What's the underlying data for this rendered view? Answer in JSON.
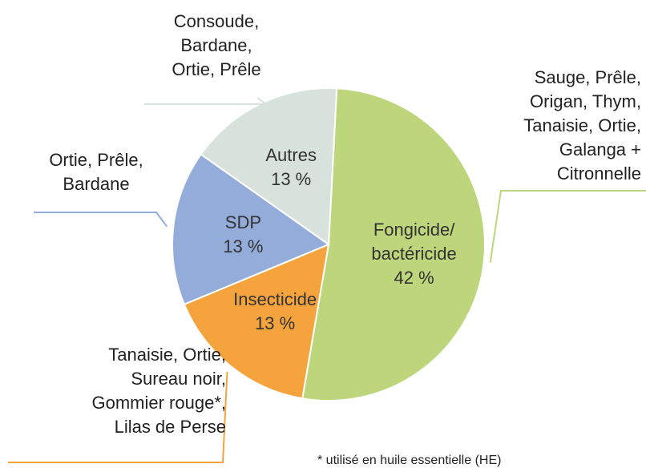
{
  "chart_data": {
    "type": "pie",
    "categories": [
      "Fongicide/ bactéricide",
      "Insecticide",
      "SDP",
      "Autres"
    ],
    "values": [
      42,
      13,
      13,
      13
    ],
    "value_labels": [
      "42 %",
      "13 %",
      "13 %",
      "13 %"
    ],
    "colors": [
      "#bdd67b",
      "#f5a33c",
      "#94acd9",
      "#d7e2dd"
    ],
    "notes": [
      [
        "Sauge, Prêle,",
        "Origan, Thym,",
        "Tanaisie, Ortie,",
        "Galanga +",
        "Citronnelle"
      ],
      [
        "Tanaisie, Ortie,",
        "Sureau noir,",
        "Gommier rouge*,",
        "Lilas de Perse"
      ],
      [
        "Ortie, Prêle,",
        "Bardane"
      ],
      [
        "Consoude,",
        "Bardane,",
        "Ortie, Prêle"
      ]
    ],
    "footnote": "* utilisé en huile essentielle (HE)"
  }
}
